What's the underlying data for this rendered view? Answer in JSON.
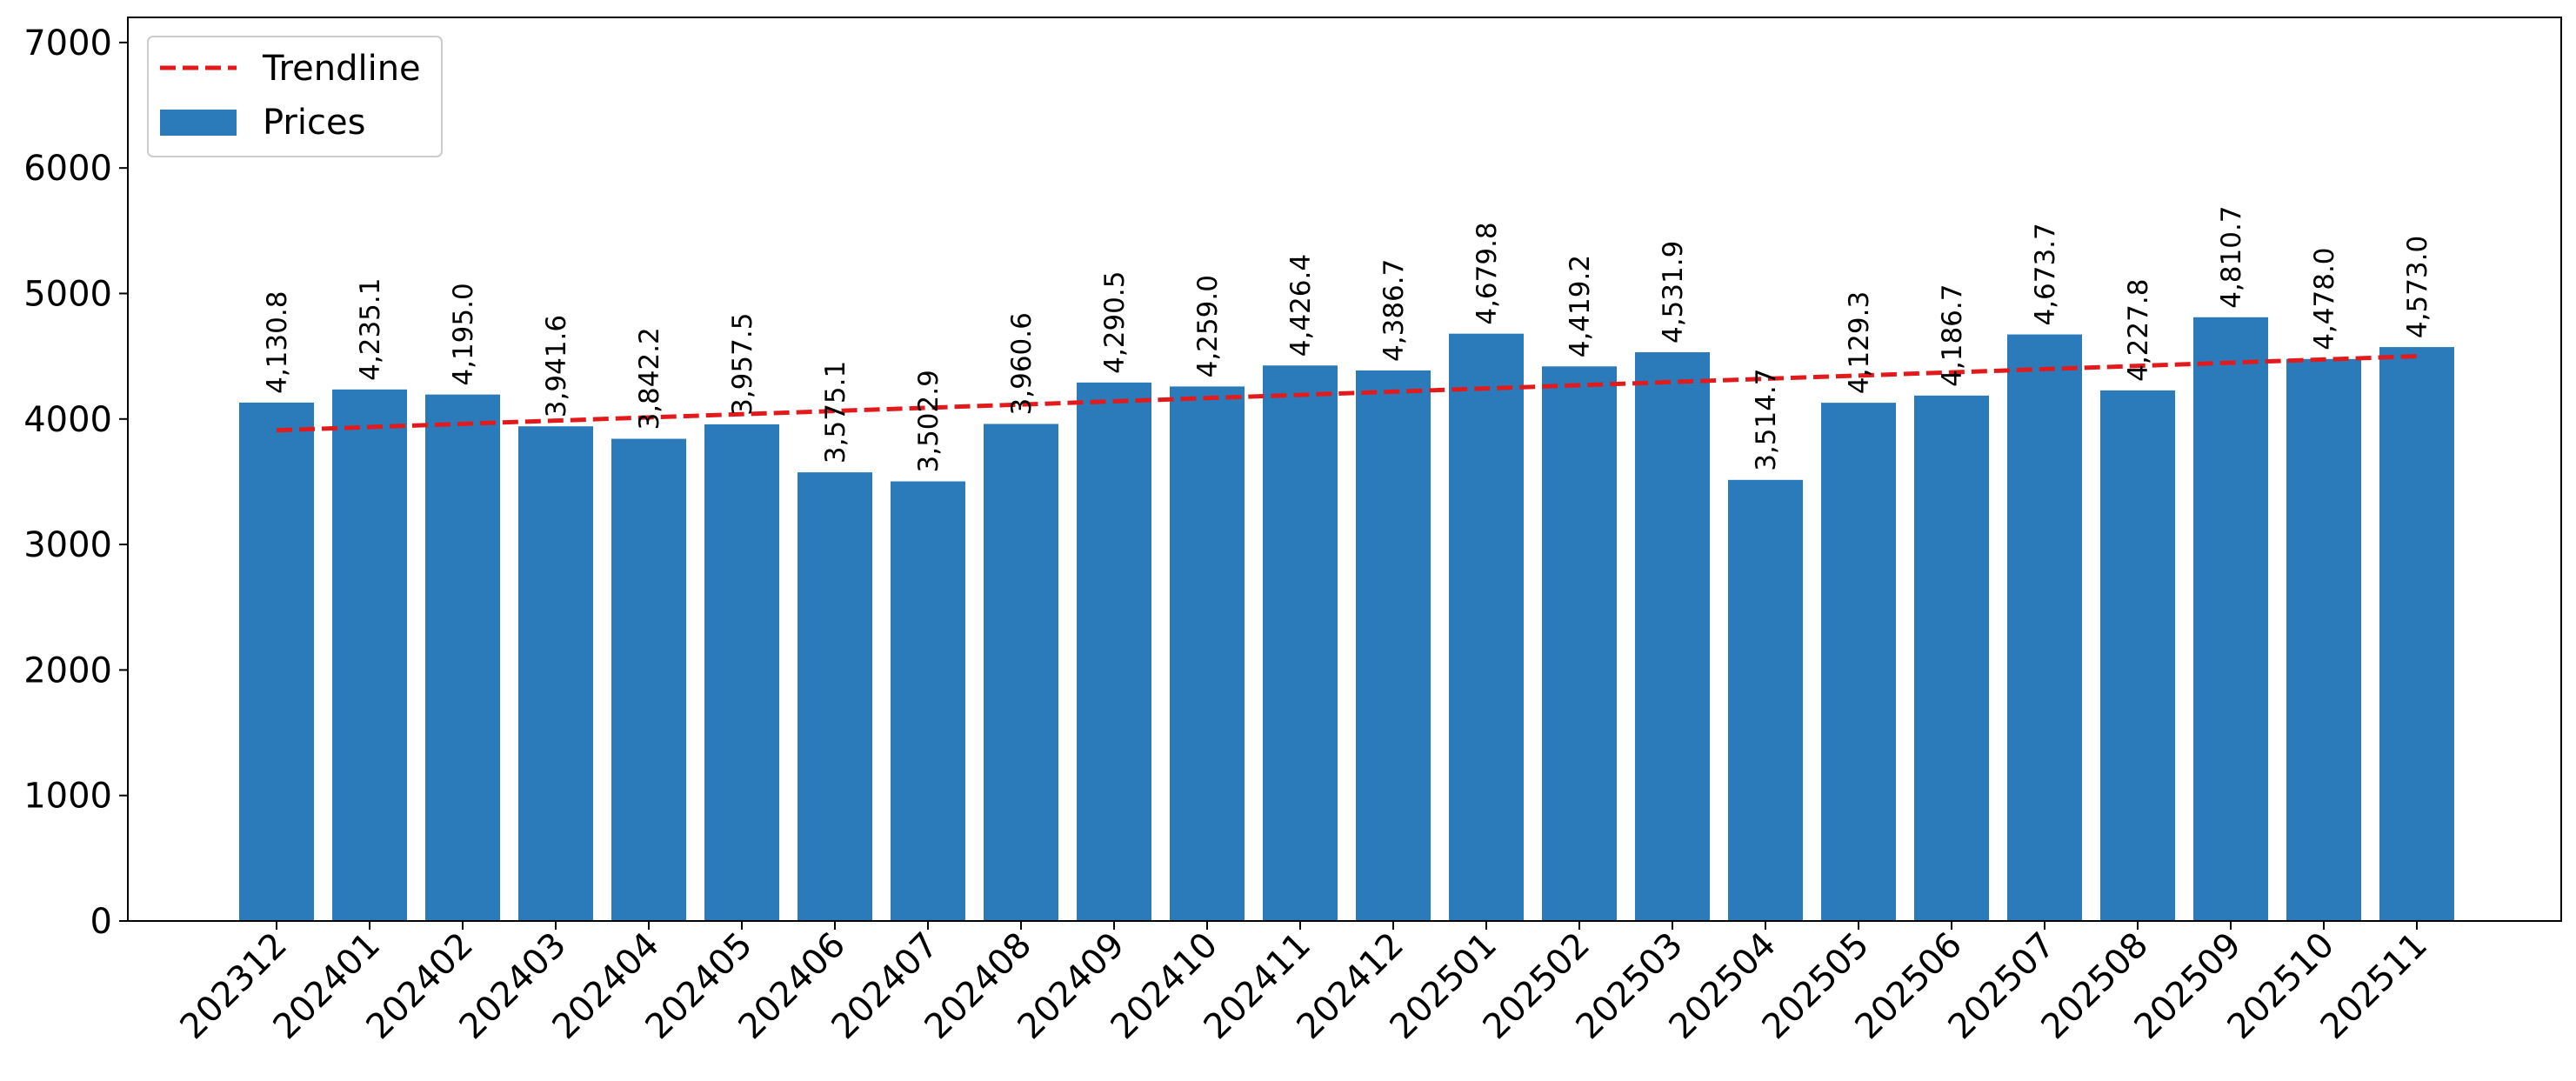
{
  "chart_data": {
    "type": "bar",
    "categories": [
      "202312",
      "202401",
      "202402",
      "202403",
      "202404",
      "202405",
      "202406",
      "202407",
      "202408",
      "202409",
      "202410",
      "202411",
      "202412",
      "202501",
      "202502",
      "202503",
      "202504",
      "202505",
      "202506",
      "202507",
      "202508",
      "202509",
      "202510",
      "202511"
    ],
    "series": [
      {
        "name": "Prices",
        "type": "bar",
        "color": "#2b7bba",
        "values": [
          4130.8,
          4235.1,
          4195.0,
          3941.6,
          3842.2,
          3957.5,
          3575.1,
          3502.9,
          3960.6,
          4290.5,
          4259.0,
          4426.4,
          4386.7,
          4679.8,
          4419.2,
          4531.9,
          3514.7,
          4129.3,
          4186.7,
          4673.7,
          4227.8,
          4810.7,
          4478.0,
          4573.0
        ]
      },
      {
        "name": "Trendline",
        "type": "line",
        "style": "dashed",
        "color": "#e31a1c",
        "start": 3910,
        "end": 4500
      }
    ],
    "data_labels": [
      "4,130.8",
      "4,235.1",
      "4,195.0",
      "3,941.6",
      "3,842.2",
      "3,957.5",
      "3,575.1",
      "3,502.9",
      "3,960.6",
      "4,290.5",
      "4,259.0",
      "4,426.4",
      "4,386.7",
      "4,679.8",
      "4,419.2",
      "4,531.9",
      "3,514.7",
      "4,129.3",
      "4,186.7",
      "4,673.7",
      "4,227.8",
      "4,810.7",
      "4,478.0",
      "4,573.0"
    ],
    "title": "",
    "xlabel": "",
    "ylabel": "",
    "ylim": [
      0,
      7200
    ],
    "yticks": [
      0,
      1000,
      2000,
      3000,
      4000,
      5000,
      6000,
      7000
    ],
    "grid": false,
    "legend_position": "top-left",
    "x_tick_rotation": 45
  }
}
